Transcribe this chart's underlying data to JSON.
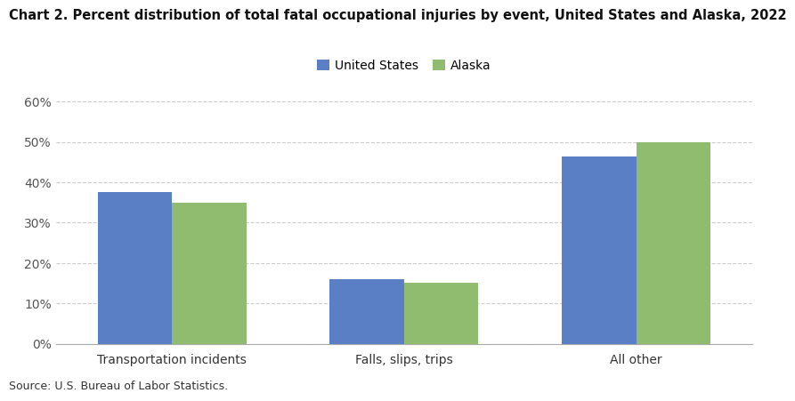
{
  "title": "Chart 2. Percent distribution of total fatal occupational injuries by event, United States and Alaska, 2022",
  "categories": [
    "Transportation incidents",
    "Falls, slips, trips",
    "All other"
  ],
  "us_values": [
    0.376,
    0.16,
    0.464
  ],
  "ak_values": [
    0.35,
    0.15,
    0.5
  ],
  "us_color": "#5b7fc4",
  "ak_color": "#8fbc6e",
  "us_label": "United States",
  "ak_label": "Alaska",
  "ylim": [
    0,
    0.62
  ],
  "yticks": [
    0.0,
    0.1,
    0.2,
    0.3,
    0.4,
    0.5,
    0.6
  ],
  "ylabel": "",
  "xlabel": "",
  "source": "Source: U.S. Bureau of Labor Statistics.",
  "title_fontsize": 10.5,
  "legend_fontsize": 10,
  "tick_fontsize": 10,
  "source_fontsize": 9,
  "bar_width": 0.32,
  "background_color": "#ffffff",
  "grid_color": "#cccccc"
}
